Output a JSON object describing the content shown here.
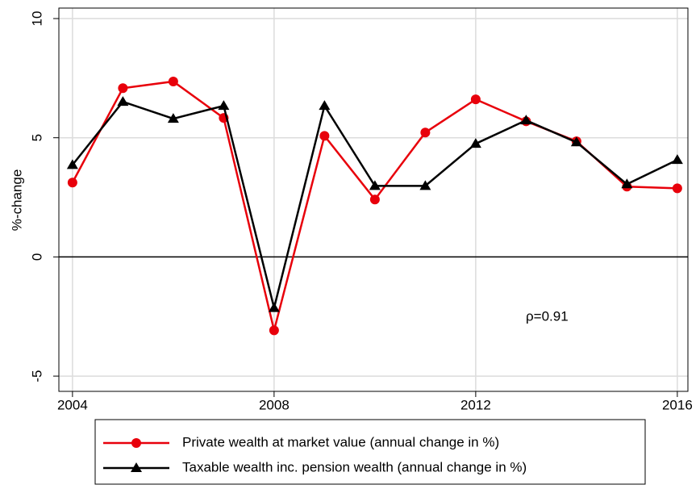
{
  "chart_data": {
    "type": "line",
    "y_label": "%-change",
    "annotation": "ρ=0.91",
    "x": [
      2004,
      2005,
      2006,
      2007,
      2008,
      2009,
      2010,
      2011,
      2012,
      2013,
      2014,
      2015,
      2016
    ],
    "series": [
      {
        "name": "Private wealth at market value (annual change in %)",
        "color": "#e8000b",
        "marker": "circle",
        "values": [
          3.12,
          7.08,
          7.36,
          5.83,
          -3.08,
          5.08,
          2.41,
          5.22,
          6.61,
          5.69,
          4.85,
          2.95,
          2.88
        ]
      },
      {
        "name": "Taxable wealth inc. pension wealth (annual change in %)",
        "color": "#000000",
        "marker": "triangle",
        "values": [
          3.86,
          6.51,
          5.8,
          6.34,
          -2.14,
          6.34,
          2.98,
          2.98,
          4.75,
          5.73,
          4.81,
          3.05,
          4.07
        ]
      }
    ],
    "xlim": [
      2003.73,
      2016.21
    ],
    "ylim": [
      -5.64,
      10.44
    ],
    "xticks": [
      2004,
      2008,
      2012,
      2016
    ],
    "yticks": [
      -5,
      0,
      5,
      10
    ],
    "grid": true,
    "legend": "bottom"
  }
}
